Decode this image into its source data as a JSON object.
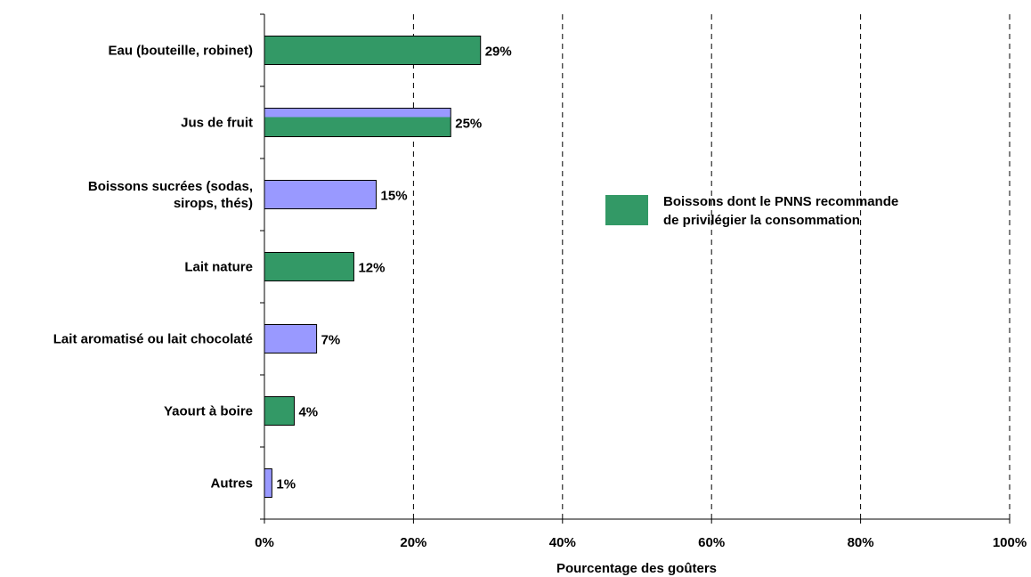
{
  "chart_data": {
    "type": "bar",
    "orientation": "horizontal",
    "title": "",
    "xlabel": "Pourcentage des goûters",
    "ylabel": "",
    "xlim": [
      0,
      100
    ],
    "x_ticks": [
      0,
      20,
      40,
      60,
      80,
      100
    ],
    "x_tick_labels": [
      "0%",
      "20%",
      "40%",
      "60%",
      "80%",
      "100%"
    ],
    "grid": "vertical dashed",
    "categories": [
      {
        "lines": [
          "Eau (bouteille, robinet)"
        ]
      },
      {
        "lines": [
          "Jus de fruit"
        ]
      },
      {
        "lines": [
          "Boissons sucrées (sodas,",
          "sirops, thés)"
        ]
      },
      {
        "lines": [
          "Lait nature"
        ]
      },
      {
        "lines": [
          "Lait aromatisé ou lait chocolaté"
        ]
      },
      {
        "lines": [
          "Yaourt à boire"
        ]
      },
      {
        "lines": [
          "Autres"
        ]
      }
    ],
    "values": [
      29,
      25,
      15,
      12,
      7,
      4,
      1
    ],
    "value_labels": [
      "29%",
      "25%",
      "15%",
      "12%",
      "7%",
      "4%",
      "1%"
    ],
    "bar_colors": [
      "green",
      "mixed",
      "lavender",
      "green",
      "lavender",
      "green",
      "lavender"
    ],
    "colors": {
      "green": "#339966",
      "lavender": "#9999ff"
    },
    "legend": {
      "placement": "center-right",
      "lines": [
        "Boissons dont le PNNS recommande",
        "de privilégier la consommation"
      ],
      "color": "#339966"
    }
  }
}
